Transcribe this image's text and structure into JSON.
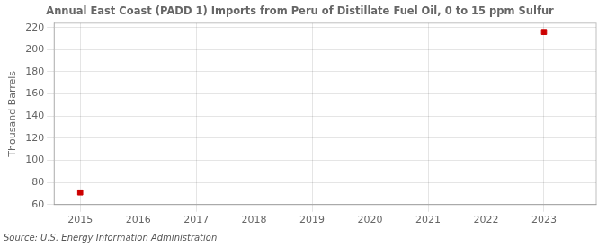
{
  "chart_data": {
    "type": "scatter",
    "title": "Annual East Coast (PADD 1) Imports from Peru of Distillate Fuel Oil, 0 to 15 ppm Sulfur",
    "ylabel": "Thousand Barrels",
    "source": "Source: U.S. Energy Information Administration",
    "x": [
      2015,
      2023
    ],
    "values": [
      71,
      216
    ],
    "color": "#cc0000",
    "marker": "square",
    "xlim": [
      2014.55,
      2023.9
    ],
    "ylim": [
      60,
      224
    ],
    "xticks": [
      2015,
      2016,
      2017,
      2018,
      2019,
      2020,
      2021,
      2022,
      2023
    ],
    "yticks": [
      60,
      80,
      100,
      120,
      140,
      160,
      180,
      200,
      220
    ],
    "grid": true
  }
}
